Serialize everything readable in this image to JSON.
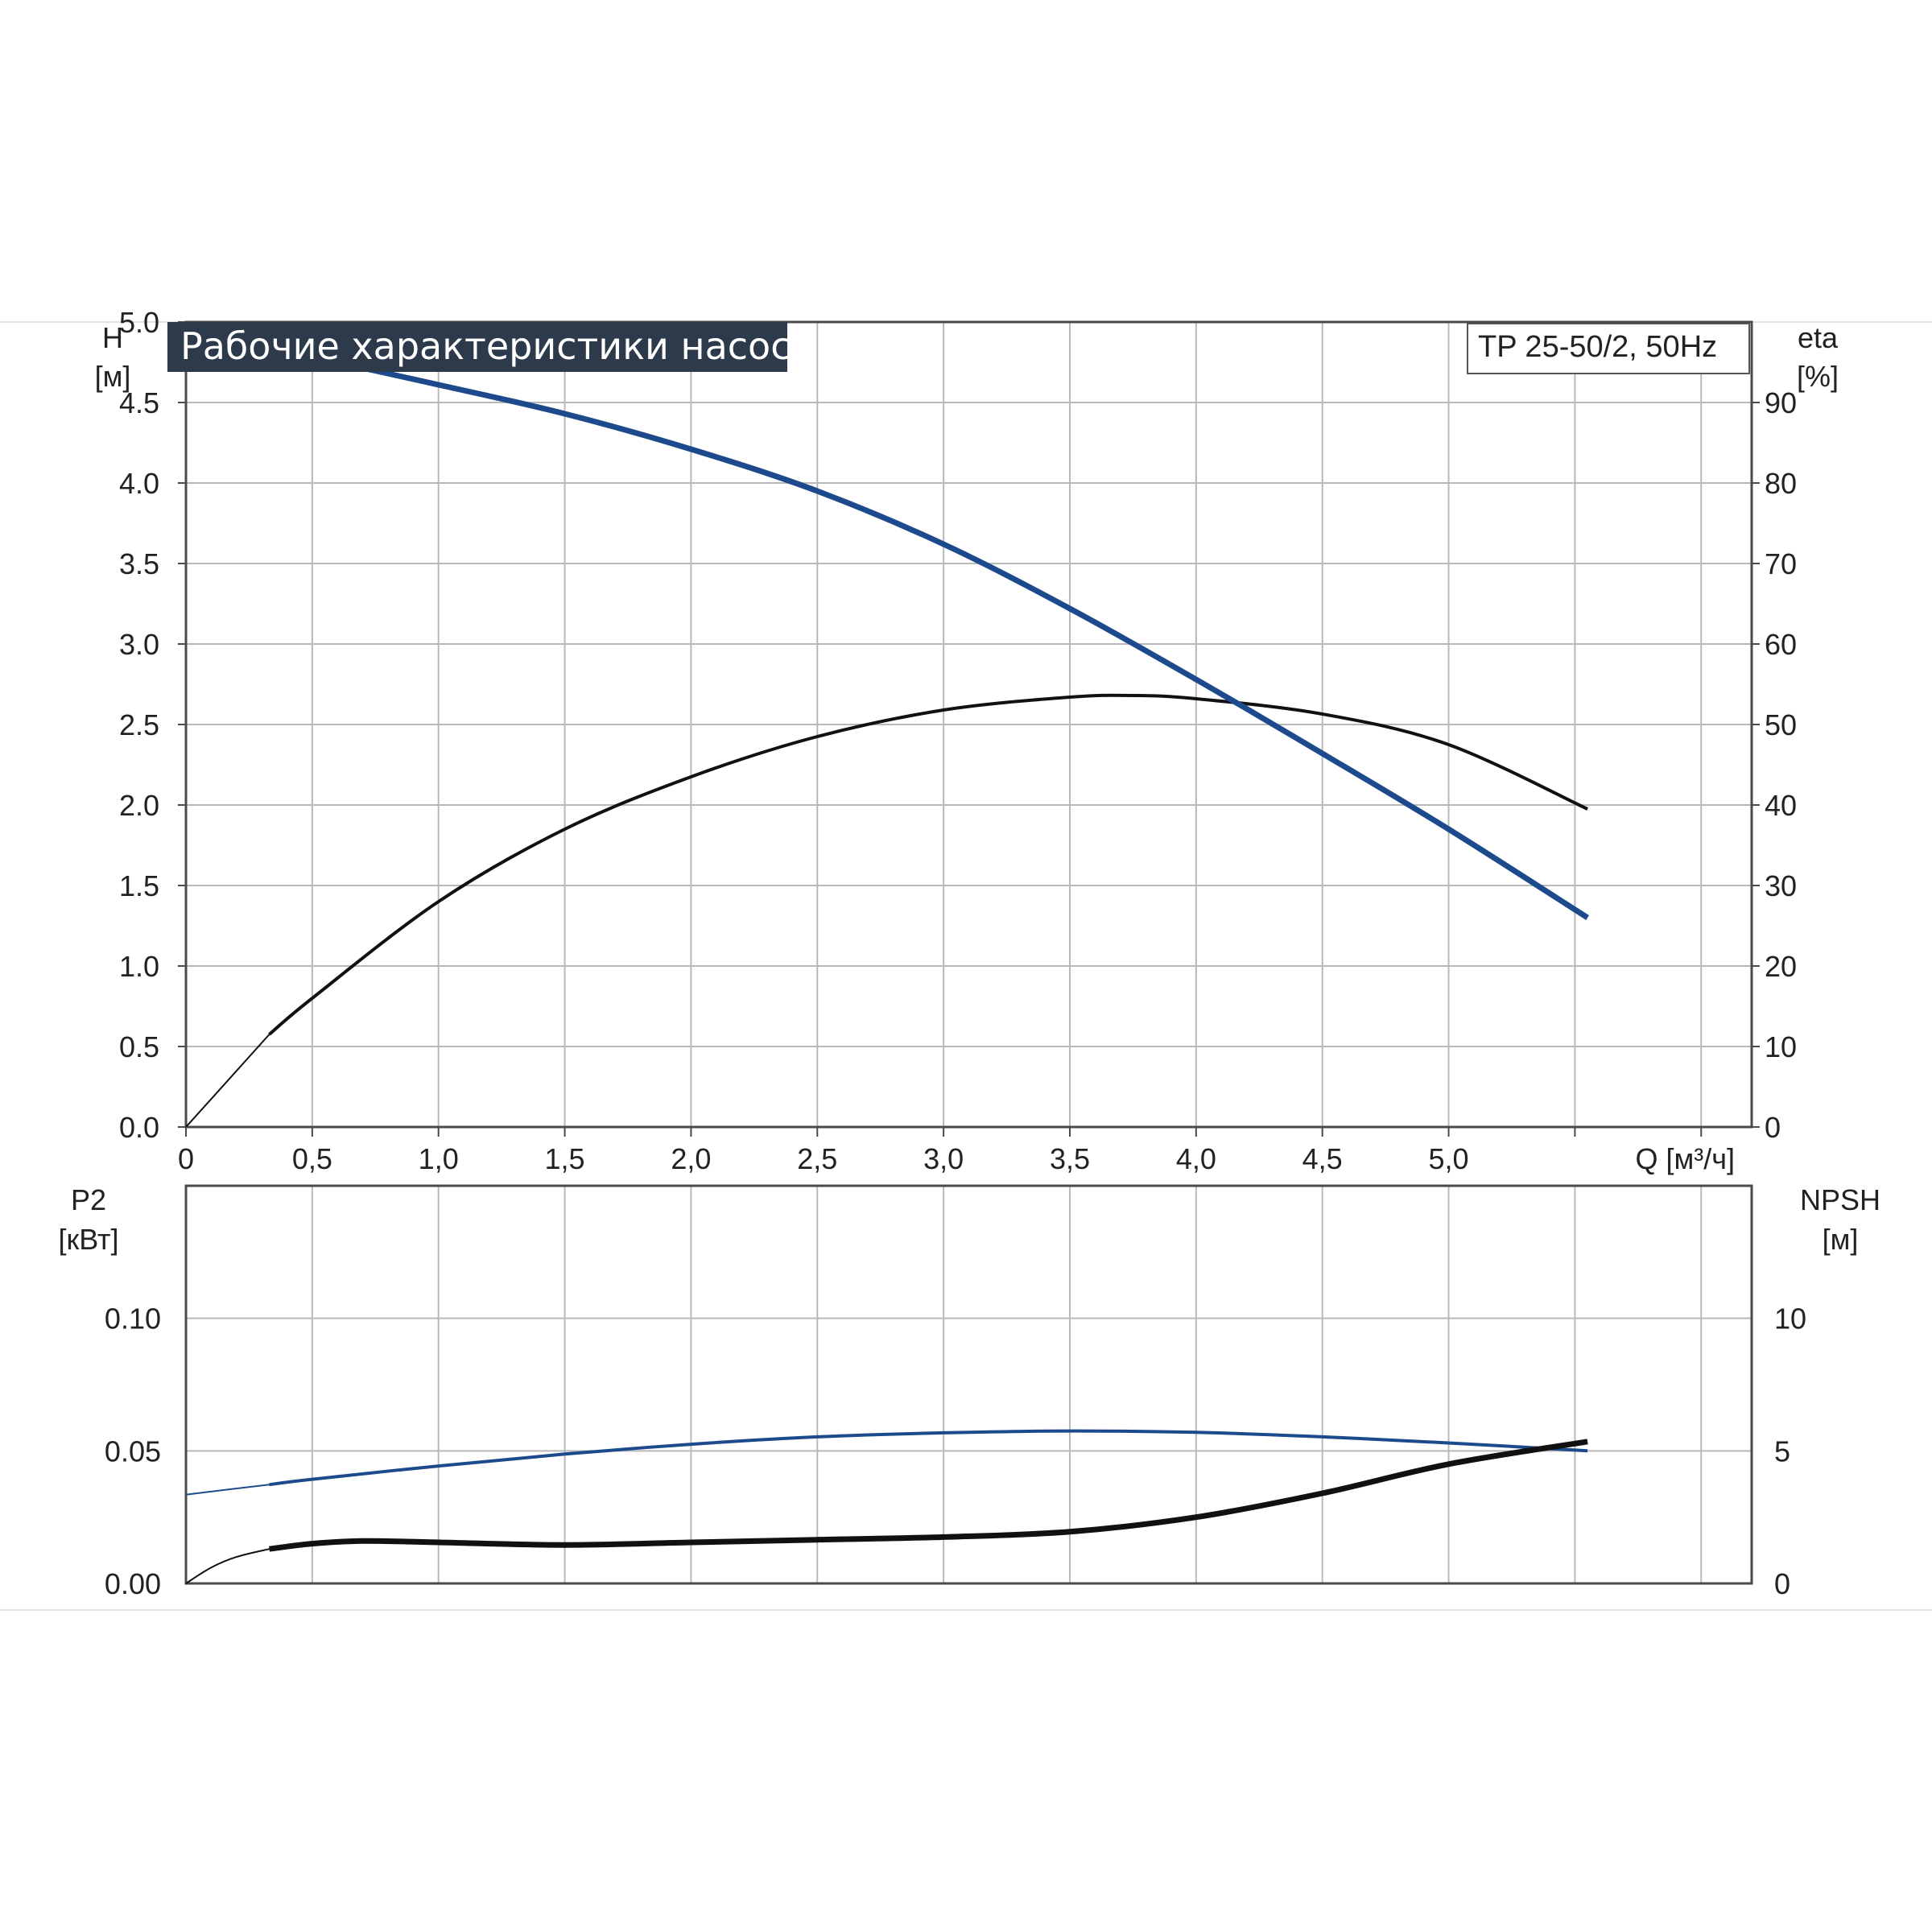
{
  "title": "Рабочие характеристики насоса",
  "model": "TP 25-50/2, 50Hz",
  "x_axis": {
    "label": "Q [м³/ч]",
    "ticks": [
      "0",
      "0,5",
      "1,0",
      "1,5",
      "2,0",
      "2,5",
      "3,0",
      "3,5",
      "4,0",
      "4,5",
      "5,0"
    ]
  },
  "top_left_axis": {
    "label": "H",
    "unit": "[м]",
    "ticks": [
      "0.0",
      "0.5",
      "1.0",
      "1.5",
      "2.0",
      "2.5",
      "3.0",
      "3.5",
      "4.0",
      "4.5",
      "5.0"
    ]
  },
  "top_right_axis": {
    "label": "eta",
    "unit": "[%]",
    "ticks": [
      "0",
      "10",
      "20",
      "30",
      "40",
      "50",
      "60",
      "70",
      "80",
      "90"
    ]
  },
  "bottom_left_axis": {
    "label": "P2",
    "unit": "[кВт]",
    "ticks": [
      "0.00",
      "0.05",
      "0.10"
    ]
  },
  "bottom_right_axis": {
    "label": "NPSH",
    "unit": "[м]",
    "ticks": [
      "0",
      "5",
      "10"
    ]
  },
  "colors": {
    "head": "#1d4a8c",
    "efficiency": "#111111",
    "power": "#1d4a8c",
    "npsh": "#111111",
    "title_bg": "#2d3a4b"
  },
  "chart_data": [
    {
      "type": "line",
      "panel": "top",
      "xlim": [
        0,
        6.2
      ],
      "ylim_left": [
        0,
        5.0
      ],
      "ylim_right": [
        0,
        100
      ],
      "grid": true,
      "series": [
        {
          "axis": "left",
          "x": [
            0,
            0.33,
            0.5,
            1.0,
            1.5,
            2.0,
            2.5,
            3.0,
            3.5,
            4.0,
            4.5,
            5.0,
            5.55
          ],
          "y": [
            4.94,
            4.82,
            4.78,
            4.61,
            4.43,
            4.21,
            3.95,
            3.62,
            3.22,
            2.78,
            2.32,
            1.85,
            1.3
          ]
        },
        {
          "axis": "right",
          "x": [
            0,
            0.33,
            0.5,
            1.0,
            1.5,
            2.0,
            2.5,
            3.0,
            3.5,
            3.75,
            4.0,
            4.5,
            5.0,
            5.55
          ],
          "y": [
            0,
            11.5,
            16,
            28,
            37,
            43.5,
            48.5,
            51.8,
            53.4,
            53.6,
            53.2,
            51.3,
            47.5,
            39.5
          ]
        }
      ]
    },
    {
      "type": "line",
      "panel": "bottom",
      "xlim": [
        0,
        6.2
      ],
      "ylim_left": [
        0,
        0.15
      ],
      "ylim_right": [
        0,
        15
      ],
      "grid": true,
      "series": [
        {
          "axis": "left",
          "x": [
            0,
            0.33,
            0.5,
            1.0,
            1.5,
            2.0,
            2.5,
            3.0,
            3.5,
            4.0,
            4.5,
            5.0,
            5.55
          ],
          "y": [
            0.0335,
            0.0373,
            0.0393,
            0.0443,
            0.0488,
            0.0525,
            0.0553,
            0.0568,
            0.0575,
            0.057,
            0.0553,
            0.053,
            0.05
          ]
        },
        {
          "axis": "right",
          "x": [
            0,
            0.1,
            0.2,
            0.33,
            0.5,
            0.7,
            1.0,
            1.5,
            2.0,
            2.5,
            3.0,
            3.5,
            4.0,
            4.5,
            5.0,
            5.55
          ],
          "y": [
            0,
            0.6,
            1.0,
            1.3,
            1.5,
            1.6,
            1.55,
            1.45,
            1.55,
            1.65,
            1.75,
            1.95,
            2.5,
            3.4,
            4.5,
            5.35
          ]
        }
      ]
    }
  ]
}
